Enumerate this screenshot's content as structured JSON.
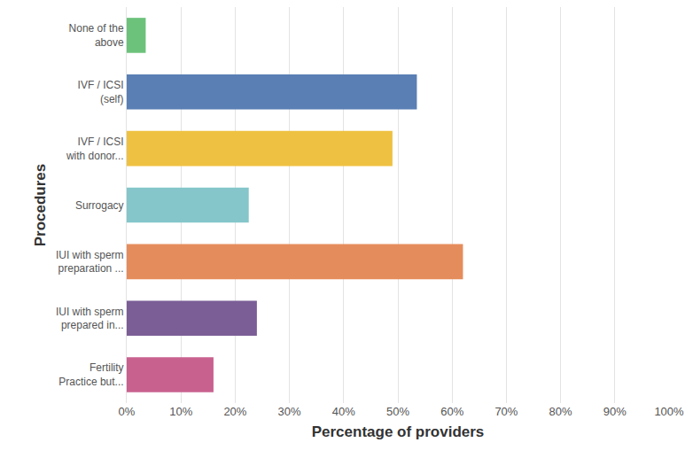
{
  "chart_data": {
    "type": "bar",
    "orientation": "horizontal",
    "x_label": "Percentage of providers",
    "y_label": "Procedures",
    "categories": [
      "None of the\nabove",
      "IVF / ICSI\n(self)",
      "IVF / ICSI\nwith donor...",
      "Surrogacy",
      "IUI with sperm\npreparation ...",
      "IUI with sperm\nprepared in...",
      "Fertility\nPractice but..."
    ],
    "values": [
      3.5,
      53.5,
      49,
      22.5,
      62,
      24,
      16
    ],
    "colors": [
      "#6cc27b",
      "#5a7fb5",
      "#eec142",
      "#84c6ca",
      "#e58c5c",
      "#7b5e96",
      "#c9618f"
    ],
    "xlim": [
      0,
      100
    ],
    "xticks": [
      {
        "value": 0,
        "label": "0%"
      },
      {
        "value": 10,
        "label": "10%"
      },
      {
        "value": 20,
        "label": "20%"
      },
      {
        "value": 30,
        "label": "30%"
      },
      {
        "value": 40,
        "label": "40%"
      },
      {
        "value": 50,
        "label": "50%"
      },
      {
        "value": 60,
        "label": "60%"
      },
      {
        "value": 70,
        "label": "70%"
      },
      {
        "value": 80,
        "label": "80%"
      },
      {
        "value": 90,
        "label": "90%"
      },
      {
        "value": 100,
        "label": "100%"
      }
    ],
    "grid": true
  }
}
